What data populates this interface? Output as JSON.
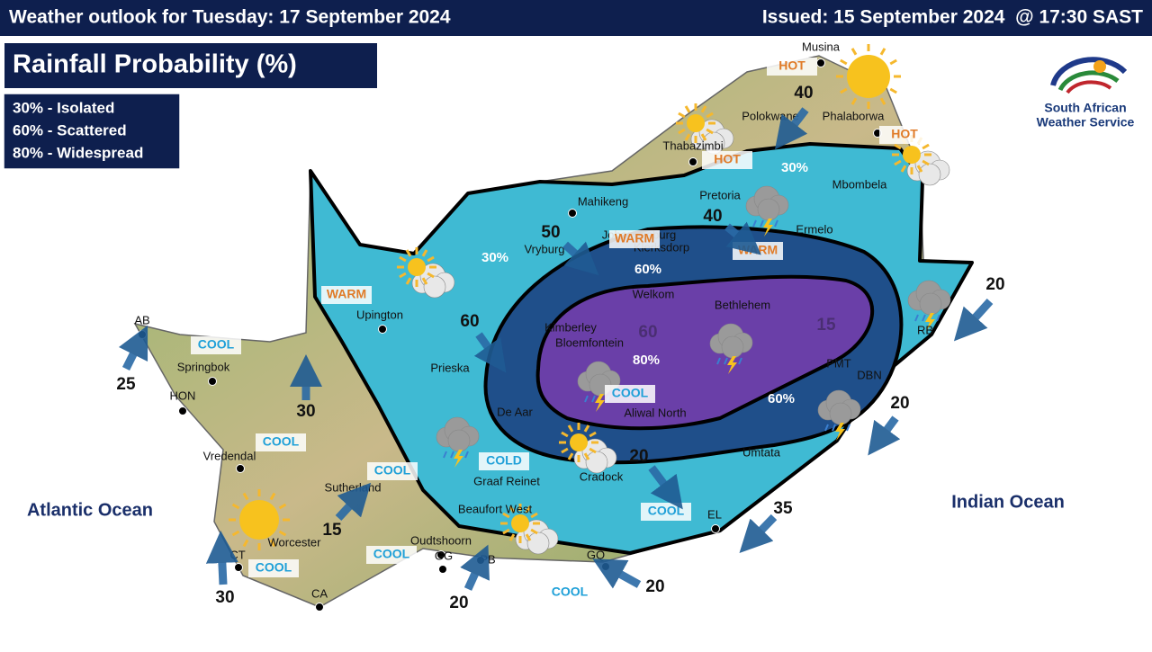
{
  "header": {
    "title": "Weather outlook for Tuesday: 17 September 2024",
    "issued": "Issued: 15 September 2024  @ 17:30 SAST"
  },
  "panel_title": "Rainfall Probability (%)",
  "legend": [
    "30% - Isolated",
    "60% - Scattered",
    "80% - Widespread"
  ],
  "logo": [
    "South African",
    "Weather Service"
  ],
  "oceans": [
    "Atlantic Ocean",
    "Indian Ocean"
  ],
  "places": [
    "Musina",
    "Polokwane",
    "Phalaborwa",
    "Thabazimbi",
    "Mahikeng",
    "Pretoria",
    "Mbombela",
    "Johannesburg",
    "Klerksdorp",
    "Ermelo",
    "Vryburg",
    "Upington",
    "Welkom",
    "Bethlehem",
    "Kimberley",
    "Bloemfontein",
    "Prieska",
    "PMT",
    "DBN",
    "RB",
    "AB",
    "Springbok",
    "HON",
    "De Aar",
    "Aliwal North",
    "Vredendal",
    "Umtata",
    "Sutherland",
    "Graaf Reinet",
    "Cradock",
    "Beaufort West",
    "EL",
    "Oudtshoorn",
    "Worcester",
    "CT",
    "GG",
    "PB",
    "GQ",
    "CA"
  ],
  "temperature_labels": [
    "HOT",
    "HOT",
    "HOT",
    "WARM",
    "WARM",
    "WARM",
    "COOL",
    "COOL",
    "COOL",
    "COLD",
    "COOL",
    "COOL",
    "COOL",
    "COOL",
    "COOL"
  ],
  "probability_labels": [
    "30%",
    "30%",
    "60%",
    "80%",
    "60%"
  ],
  "wind_speeds": [
    40,
    50,
    40,
    60,
    20,
    25,
    30,
    20,
    35,
    15,
    30,
    20,
    20,
    20,
    60,
    15
  ]
}
